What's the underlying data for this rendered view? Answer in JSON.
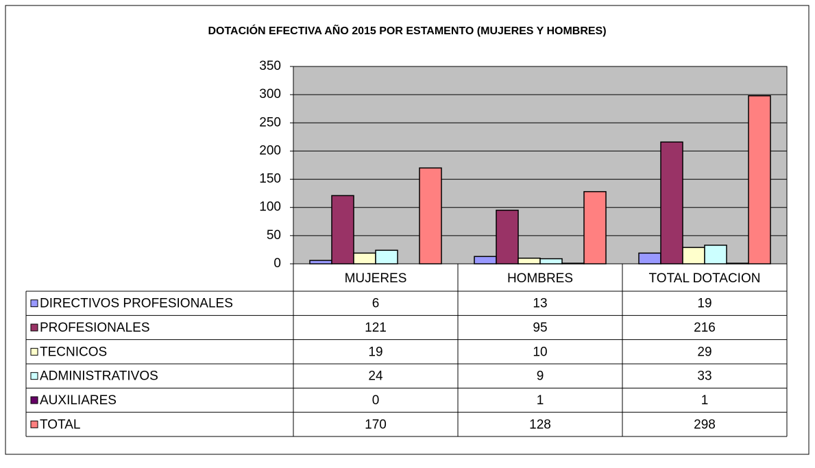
{
  "chart_data": {
    "type": "bar",
    "title": "DOTACIÓN EFECTIVA AÑO 2015 POR ESTAMENTO (MUJERES Y HOMBRES)",
    "categories": [
      "MUJERES",
      "HOMBRES",
      "TOTAL DOTACION"
    ],
    "series": [
      {
        "name": "DIRECTIVOS PROFESIONALES",
        "color": "#9999ff",
        "values": [
          6,
          13,
          19
        ]
      },
      {
        "name": "PROFESIONALES",
        "color": "#993366",
        "values": [
          121,
          95,
          216
        ]
      },
      {
        "name": "TECNICOS",
        "color": "#ffffcc",
        "values": [
          19,
          10,
          29
        ]
      },
      {
        "name": "ADMINISTRATIVOS",
        "color": "#ccffff",
        "values": [
          24,
          9,
          33
        ]
      },
      {
        "name": "AUXILIARES",
        "color": "#660066",
        "values": [
          0,
          1,
          1
        ]
      },
      {
        "name": "TOTAL",
        "color": "#ff8080",
        "values": [
          170,
          128,
          298
        ]
      }
    ],
    "ylim": [
      0,
      350
    ],
    "yticks": [
      0,
      50,
      100,
      150,
      200,
      250,
      300,
      350
    ],
    "grid": true,
    "plot_background": "#c0c0c0"
  }
}
